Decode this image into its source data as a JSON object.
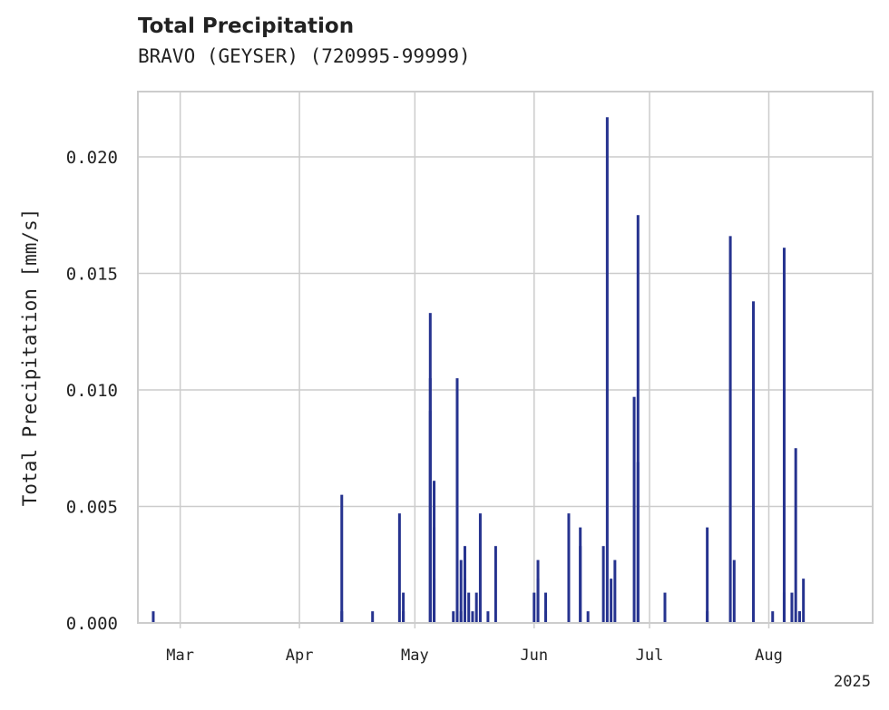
{
  "chart_data": {
    "type": "bar",
    "title": "Total Precipitation",
    "subtitle": "BRAVO (GEYSER) (720995-99999)",
    "xlabel": "",
    "ylabel": "Total Precipitation [mm/s]",
    "ylim": [
      0,
      0.0228
    ],
    "xlim": [
      "2025-02-18",
      "2025-08-28"
    ],
    "yticks": [
      0.0,
      0.005,
      0.01,
      0.015,
      0.02
    ],
    "ytick_labels": [
      "0.000",
      "0.005",
      "0.010",
      "0.015",
      "0.020"
    ],
    "xticks": [
      "2025-03-01",
      "2025-04-01",
      "2025-05-01",
      "2025-06-01",
      "2025-07-01",
      "2025-08-01"
    ],
    "xtick_labels": [
      "Mar",
      "Apr",
      "May",
      "Jun",
      "Jul",
      "Aug"
    ],
    "year_label": "2025",
    "grid": true,
    "bar_color": "#26338f",
    "series": [
      {
        "x": [
          "2025-02-22",
          "2025-04-12",
          "2025-04-12",
          "2025-04-20",
          "2025-04-27",
          "2025-04-28",
          "2025-04-28",
          "2025-05-05",
          "2025-05-05",
          "2025-05-05",
          "2025-05-06",
          "2025-05-06",
          "2025-05-06",
          "2025-05-11",
          "2025-05-12",
          "2025-05-12",
          "2025-05-13",
          "2025-05-13",
          "2025-05-14",
          "2025-05-14",
          "2025-05-15",
          "2025-05-16",
          "2025-05-17",
          "2025-05-18",
          "2025-05-20",
          "2025-05-22",
          "2025-06-01",
          "2025-06-02",
          "2025-06-02",
          "2025-06-04",
          "2025-06-04",
          "2025-06-10",
          "2025-06-13",
          "2025-06-13",
          "2025-06-15",
          "2025-06-19",
          "2025-06-20",
          "2025-06-21",
          "2025-06-22",
          "2025-06-27",
          "2025-06-28",
          "2025-06-28",
          "2025-07-05",
          "2025-07-16",
          "2025-07-16",
          "2025-07-22",
          "2025-07-23",
          "2025-07-28",
          "2025-08-02",
          "2025-08-05",
          "2025-08-05",
          "2025-08-07",
          "2025-08-08",
          "2025-08-09",
          "2025-08-09",
          "2025-08-10"
        ],
        "values": [
          0.0005,
          0.0055,
          0.0005,
          0.0005,
          0.0047,
          0.0013,
          0.0005,
          0.0091,
          0.0133,
          0.0105,
          0.0061,
          0.0041,
          0.0019,
          0.0005,
          0.0105,
          0.0013,
          0.0005,
          0.0027,
          0.0033,
          0.0019,
          0.0013,
          0.0005,
          0.0013,
          0.0047,
          0.0005,
          0.0033,
          0.0013,
          0.0019,
          0.0027,
          0.0013,
          0.0005,
          0.0047,
          0.0041,
          0.0033,
          0.0005,
          0.0033,
          0.0217,
          0.0019,
          0.0027,
          0.0097,
          0.0175,
          0.0069,
          0.0013,
          0.0041,
          0.0005,
          0.0166,
          0.0027,
          0.0138,
          0.0005,
          0.0161,
          0.0013,
          0.0013,
          0.0075,
          0.0005,
          0.0005,
          0.0019
        ]
      }
    ]
  }
}
